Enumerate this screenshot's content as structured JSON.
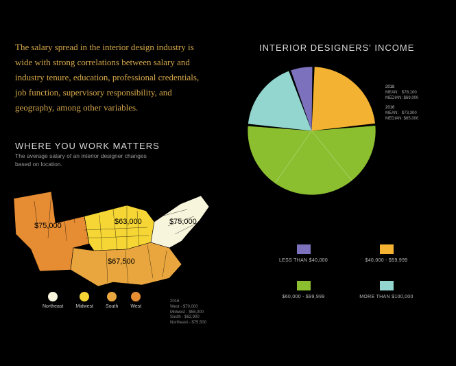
{
  "intro_text": "The salary spread in the interior design industry is wide with strong correlations between salary and industry tenure, education, professional credentials, job function, supervisory responsibility, and geography, among other variables.",
  "map_section": {
    "title": "WHERE YOU WORK MATTERS",
    "subtitle": "The average salary of an interior designer changes based on location.",
    "region_colors": {
      "northeast": "#f7f5db",
      "midwest": "#f6d635",
      "south": "#e9a63e",
      "west": "#e68c33"
    },
    "labels": {
      "west": "$75,000",
      "midwest": "$63,000",
      "south": "$67,500",
      "northeast": "$75,000"
    },
    "legend": [
      {
        "label": "Northeast",
        "color": "#f7f5db"
      },
      {
        "label": "Midwest",
        "color": "#f6d635"
      },
      {
        "label": "South",
        "color": "#e9a63e"
      },
      {
        "label": "West",
        "color": "#e68c33"
      }
    ],
    "notes_2016": {
      "heading": "2016",
      "lines": [
        "West - $70,000",
        "Midwest - $58,000",
        "South - $62,900",
        "Northeast - $75,500"
      ]
    }
  },
  "income_section": {
    "title": "INTERIOR DESIGNERS' INCOME",
    "chart": {
      "type": "pie",
      "background": "#000000",
      "slices": [
        {
          "label": "LESS THAN $40,000",
          "value": 6,
          "color": "#7c71bc"
        },
        {
          "label": "$40,000 - $59,999",
          "value": 23,
          "color": "#f4b233"
        },
        {
          "label": "$60,000 - $99,999",
          "value": 53,
          "color": "#8bbf2f"
        },
        {
          "label": "MORE THAN $100,000",
          "value": 18,
          "color": "#92d6cf"
        }
      ],
      "gap_deg": 2,
      "start_angle_deg": -20,
      "divider_angles_deg": [
        141,
        215
      ]
    },
    "stats": [
      {
        "year": "2018",
        "mean": "$78,100",
        "median": "$69,000"
      },
      {
        "year": "2016",
        "mean": "$73,300",
        "median": "$65,000"
      }
    ],
    "legend": [
      {
        "label": "LESS THAN $40,000",
        "color": "#7c71bc"
      },
      {
        "label": "$40,000 - $59,999",
        "color": "#f4b233"
      },
      {
        "label": "$60,000 - $99,999",
        "color": "#8bbf2f"
      },
      {
        "label": "MORE THAN $100,000",
        "color": "#92d6cf"
      }
    ]
  }
}
